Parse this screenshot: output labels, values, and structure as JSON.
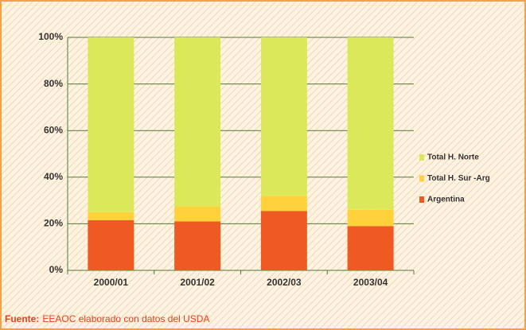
{
  "chart_data": {
    "type": "stacked_bar",
    "categories": [
      "2000/01",
      "2001/02",
      "2002/03",
      "2003/04"
    ],
    "series": [
      {
        "name": "Argentina",
        "color": "#ee5a22",
        "values": [
          21.5,
          21,
          25.5,
          19
        ]
      },
      {
        "name": "Total H. Sur -Arg",
        "color": "#ffd23c",
        "values": [
          3.5,
          6.5,
          6.5,
          7
        ]
      },
      {
        "name": "Total H. Norte",
        "color": "#dbe85a",
        "values": [
          75,
          72.5,
          68,
          74
        ]
      }
    ],
    "ylim": [
      0,
      100
    ],
    "yticks": [
      {
        "value": 0,
        "label": "0%"
      },
      {
        "value": 20,
        "label": "20%"
      },
      {
        "value": 40,
        "label": "40%"
      },
      {
        "value": 60,
        "label": "60%"
      },
      {
        "value": 80,
        "label": "80%"
      },
      {
        "value": 100,
        "label": "100%"
      }
    ],
    "grid": true,
    "legend": "right",
    "source_label": "Fuente:",
    "source_text": "EEAOC elaborado con datos del USDA"
  }
}
